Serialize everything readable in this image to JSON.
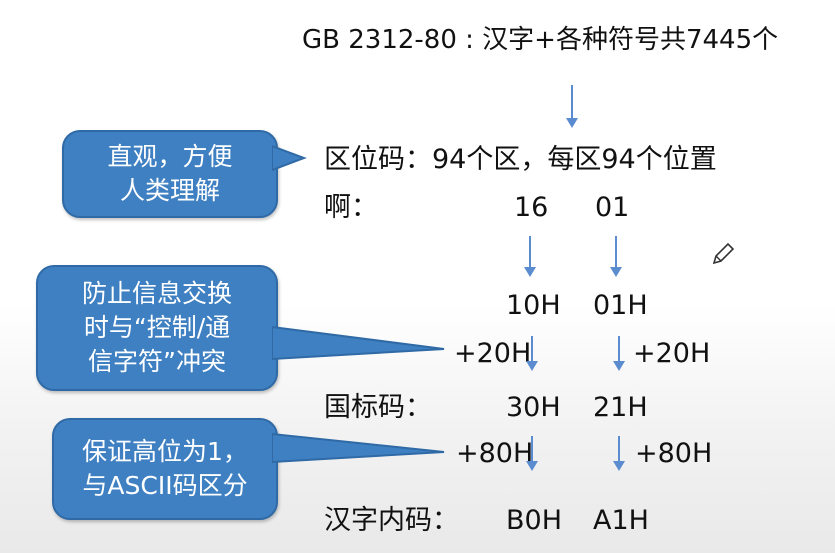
{
  "title": "GB 2312-80 : 汉字+各种符号共7445个",
  "quwei_line": "区位码：94个区，每区94个位置",
  "example_char": "啊：",
  "quwei_values": [
    "16",
    "01"
  ],
  "hex_values": [
    "10H",
    "01H"
  ],
  "add20": [
    "+20H",
    "+20H"
  ],
  "guobiao_label": "国标码：",
  "guobiao_values": [
    "30H",
    "21H"
  ],
  "add80": [
    "+80H",
    "+80H"
  ],
  "neima_label": "汉字内码：",
  "neima_values": [
    "B0H",
    "A1H"
  ],
  "callouts": {
    "c1": [
      "直观，方便",
      "人类理解"
    ],
    "c2": [
      "防止信息交换",
      "时与“控制/通",
      "信字符”冲突"
    ],
    "c3": [
      "保证高位为1，",
      "与ASCII码区分"
    ]
  },
  "colors": {
    "callout_fill": "#3f80c2",
    "arrow": "#5b8ccf"
  },
  "icons": [
    "pencil-icon"
  ]
}
